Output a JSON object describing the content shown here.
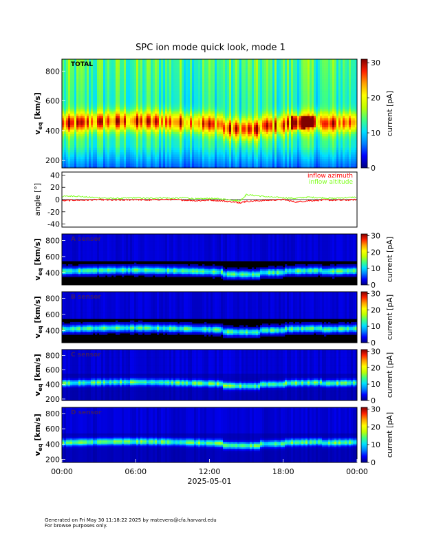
{
  "title": "SPC ion mode quick look, mode 1",
  "colors": {
    "colormap": [
      "#000080",
      "#0000ff",
      "#0080ff",
      "#00e0ff",
      "#40ff80",
      "#c0ff00",
      "#ffff00",
      "#ffa000",
      "#ff2000",
      "#800000"
    ],
    "azimuth": "#ff0000",
    "altitude": "#80ff20"
  },
  "footer": {
    "line1": "Generated on Fri May 30 11:18:22 2025 by mstevens@cfa.harvard.edu",
    "line2": "For browse purposes only."
  },
  "chart_data": [
    {
      "type": "heatmap",
      "panel_label": "TOTAL",
      "ylabel": "v",
      "ylabel_sub": "eq",
      "ylabel_unit": "[km/s]",
      "yticks": [
        200,
        400,
        600,
        800
      ],
      "ylim": [
        150,
        880
      ],
      "colorbar": {
        "label": "current [pA]",
        "ticks": [
          0,
          10,
          20,
          30
        ],
        "range": [
          0,
          31
        ]
      },
      "peak_velocity_kms": 450,
      "description_scale": "bright band 380–480 km/s, broad green/cyan background"
    },
    {
      "type": "line",
      "ylabel": "angle [°]",
      "yticks": [
        -40,
        -20,
        0,
        20,
        40
      ],
      "ylim": [
        -45,
        45
      ],
      "zero_line": true,
      "series": [
        {
          "name": "inflow azimuth",
          "color": "#ff0000",
          "x_hours": [
            0,
            1,
            2,
            3,
            4,
            5,
            6,
            7,
            8,
            9,
            10,
            11,
            12,
            13,
            14,
            14.5,
            15,
            16,
            17,
            18,
            19,
            20,
            21,
            22,
            23,
            24
          ],
          "values": [
            -2,
            -1,
            -1,
            0,
            -1,
            -1,
            0,
            -1,
            0,
            0,
            -1,
            -2,
            -1,
            -2,
            -4,
            -5,
            -3,
            -2,
            -1,
            0,
            -4,
            -2,
            -1,
            -1,
            -1,
            0
          ]
        },
        {
          "name": "inflow altitude",
          "color": "#80ff20",
          "x_hours": [
            0,
            1,
            2,
            3,
            4,
            5,
            6,
            7,
            8,
            9,
            10,
            11,
            12,
            13,
            14,
            14.5,
            15,
            16,
            17,
            18,
            19,
            20,
            21,
            22,
            23,
            24
          ],
          "values": [
            5,
            6,
            4,
            3,
            2,
            2,
            3,
            2,
            3,
            2,
            3,
            1,
            2,
            1,
            -1,
            -2,
            8,
            6,
            4,
            3,
            2,
            4,
            3,
            2,
            3,
            4
          ]
        }
      ]
    },
    {
      "type": "heatmap",
      "panel_label": "A sensor",
      "ylabel": "v",
      "ylabel_sub": "eq",
      "ylabel_unit": "[km/s]",
      "yticks": [
        400,
        600,
        800
      ],
      "ylim": [
        250,
        880
      ],
      "colorbar": {
        "label": "current [pA]",
        "ticks": [
          0,
          10,
          20,
          30
        ],
        "range": [
          0,
          31
        ]
      },
      "peak_velocity_kms": 420
    },
    {
      "type": "heatmap",
      "panel_label": "B sensor",
      "ylabel": "v",
      "ylabel_sub": "eq",
      "ylabel_unit": "[km/s]",
      "yticks": [
        400,
        600,
        800
      ],
      "ylim": [
        250,
        880
      ],
      "colorbar": {
        "label": "current [pA]",
        "ticks": [
          0,
          10,
          20,
          30
        ],
        "range": [
          0,
          31
        ]
      },
      "peak_velocity_kms": 420
    },
    {
      "type": "heatmap",
      "panel_label": "C sensor",
      "ylabel": "v",
      "ylabel_sub": "eq",
      "ylabel_unit": "[km/s]",
      "yticks": [
        200,
        400,
        600,
        800
      ],
      "ylim": [
        180,
        880
      ],
      "colorbar": {
        "label": "current [pA]",
        "ticks": [
          0,
          10,
          20,
          30
        ],
        "range": [
          0,
          31
        ]
      },
      "peak_velocity_kms": 420
    },
    {
      "type": "heatmap",
      "panel_label": "D sensor",
      "ylabel": "v",
      "ylabel_sub": "eq",
      "ylabel_unit": "[km/s]",
      "yticks": [
        200,
        400,
        600,
        800
      ],
      "ylim": [
        160,
        880
      ],
      "colorbar": {
        "label": "current [pA]",
        "ticks": [
          0,
          10,
          20,
          30
        ],
        "range": [
          0,
          31
        ]
      },
      "peak_velocity_kms": 420
    }
  ],
  "xaxis": {
    "ticks": [
      "00:00",
      "06:00",
      "12:00",
      "18:00",
      "00:00"
    ],
    "tick_hours": [
      0,
      6,
      12,
      18,
      24
    ],
    "date_label": "2025-05-01"
  }
}
